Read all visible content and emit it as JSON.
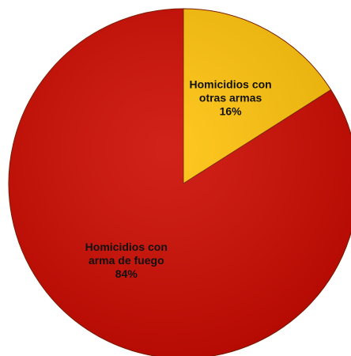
{
  "chart_data": {
    "type": "pie",
    "title": "",
    "slices": [
      {
        "name_lines": [
          "Homicidios con",
          "otras armas"
        ],
        "value": 16,
        "value_label": "16%",
        "color": "#ffc20a"
      },
      {
        "name_lines": [
          "Homicidios con",
          "arma de fuego"
        ],
        "value": 84,
        "value_label": "84%",
        "color": "#cc0a00"
      }
    ],
    "start_angle_deg": 0,
    "direction": "clockwise",
    "legend": "none",
    "labels_inside": true
  }
}
